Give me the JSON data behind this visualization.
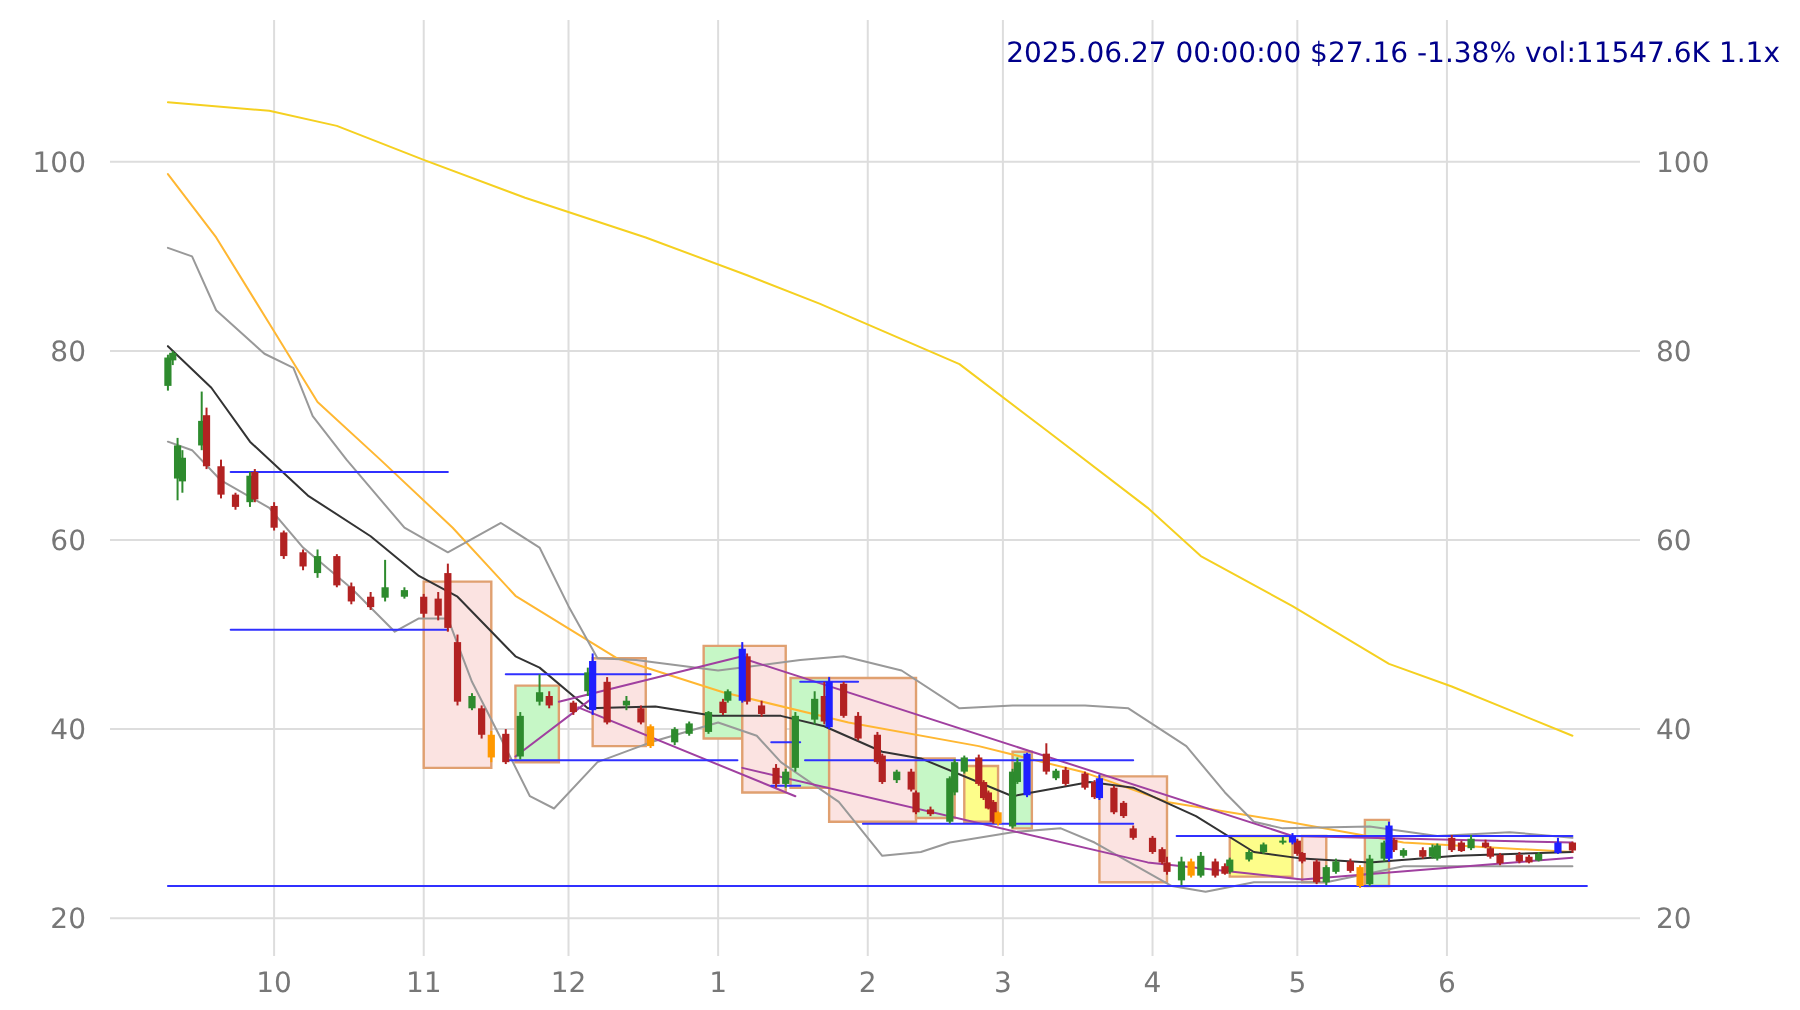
{
  "chart_data": {
    "type": "candlestick",
    "title": "2025.06.27 00:00:00 $27.16 -1.38% vol:11547.6K 1.1x",
    "xlim": [
      "2024-08-28",
      "2025-07-11"
    ],
    "ylim": [
      16,
      115
    ],
    "y2lim": [
      16,
      115
    ],
    "xticks": [
      {
        "value": "2024-10-01",
        "label": "10"
      },
      {
        "value": "2024-11-01",
        "label": "11"
      },
      {
        "value": "2024-12-01",
        "label": "12"
      },
      {
        "value": "2025-01-01",
        "label": "1"
      },
      {
        "value": "2025-02-01",
        "label": "2"
      },
      {
        "value": "2025-03-01",
        "label": "3"
      },
      {
        "value": "2025-04-01",
        "label": "4"
      },
      {
        "value": "2025-05-01",
        "label": "5"
      },
      {
        "value": "2025-06-01",
        "label": "6"
      }
    ],
    "yticks": [
      20,
      40,
      60,
      80,
      100
    ],
    "y2ticks": [
      20,
      40,
      60,
      80,
      100
    ],
    "grid": true,
    "series": [
      {
        "type": "area",
        "color": "#fbe3e1",
        "x": [
          "2024-11-01",
          "2024-11-01",
          "2024-11-15",
          "2024-11-15"
        ],
        "values": [
          35.9,
          55.6,
          55.6,
          35.9
        ]
      },
      {
        "type": "area",
        "color": "#c6f7c6",
        "x": [
          "2024-11-20",
          "2024-11-20",
          "2024-11-29",
          "2024-11-29"
        ],
        "values": [
          36.5,
          44.6,
          44.6,
          36.5
        ]
      },
      {
        "type": "area",
        "color": "#fbe3e1",
        "x": [
          "2024-12-06",
          "2024-12-06",
          "2024-12-17",
          "2024-12-17"
        ],
        "values": [
          38.2,
          47.5,
          47.5,
          38.2
        ]
      },
      {
        "type": "area",
        "color": "#c6f7c6",
        "x": [
          "2024-12-29",
          "2024-12-29",
          "2025-01-06",
          "2025-01-06"
        ],
        "values": [
          39,
          48.8,
          48.8,
          39
        ]
      },
      {
        "type": "area",
        "color": "#fbe3e1",
        "x": [
          "2025-01-06",
          "2025-01-06",
          "2025-01-15",
          "2025-01-15"
        ],
        "values": [
          33.3,
          48.8,
          48.8,
          33.3
        ]
      },
      {
        "type": "area",
        "color": "#c6f7c6",
        "x": [
          "2025-01-16",
          "2025-01-16",
          "2025-01-24",
          "2025-01-24"
        ],
        "values": [
          33.8,
          45.4,
          45.4,
          33.8
        ]
      },
      {
        "type": "area",
        "color": "#fbe3e1",
        "x": [
          "2025-01-24",
          "2025-01-24",
          "2025-02-11",
          "2025-02-11"
        ],
        "values": [
          30.2,
          45.4,
          45.4,
          30.2
        ]
      },
      {
        "type": "area",
        "color": "#c6f7c6",
        "x": [
          "2025-02-11",
          "2025-02-11",
          "2025-02-19",
          "2025-02-19"
        ],
        "values": [
          30.6,
          36.9,
          36.9,
          30.6
        ]
      },
      {
        "type": "area",
        "color": "#fdfd8a",
        "x": [
          "2025-02-21",
          "2025-02-21",
          "2025-02-28",
          "2025-02-28"
        ],
        "values": [
          30.2,
          36.1,
          36.1,
          30.2
        ]
      },
      {
        "type": "area",
        "color": "#c6f7c6",
        "x": [
          "2025-03-03",
          "2025-03-03",
          "2025-03-07",
          "2025-03-07"
        ],
        "values": [
          29.5,
          37.6,
          37.6,
          29.5
        ]
      },
      {
        "type": "area",
        "color": "#fbe3e1",
        "x": [
          "2025-03-21",
          "2025-03-21",
          "2025-04-04",
          "2025-04-04"
        ],
        "values": [
          23.8,
          35,
          35,
          23.8
        ]
      },
      {
        "type": "area",
        "color": "#fdfd8a",
        "x": [
          "2025-04-17",
          "2025-04-17",
          "2025-04-30",
          "2025-04-30"
        ],
        "values": [
          24.4,
          28.7,
          28.7,
          24.4
        ]
      },
      {
        "type": "area",
        "color": "#fbe3e1",
        "x": [
          "2025-05-02",
          "2025-05-02",
          "2025-05-07",
          "2025-05-07"
        ],
        "values": [
          23.8,
          28.7,
          28.7,
          23.8
        ]
      },
      {
        "type": "area",
        "color": "#c6f7c6",
        "x": [
          "2025-05-15",
          "2025-05-15",
          "2025-05-20",
          "2025-05-20"
        ],
        "values": [
          23.4,
          30.4,
          30.4,
          23.4
        ]
      },
      {
        "type": "line",
        "color": "#f5d020",
        "x": [
          "2024-09-09",
          "2024-09-30",
          "2024-10-14",
          "2024-11-01",
          "2024-11-22",
          "2024-12-17",
          "2025-01-07",
          "2025-01-22",
          "2025-02-20",
          "2025-03-10",
          "2025-03-31",
          "2025-04-11",
          "2025-04-30",
          "2025-05-20",
          "2025-06-02",
          "2025-06-27"
        ],
        "values": [
          106.3,
          105.4,
          103.8,
          100.2,
          96.2,
          92,
          88,
          85,
          78.6,
          71.6,
          63.4,
          58.3,
          53,
          46.9,
          44.5,
          39.3
        ]
      },
      {
        "type": "line",
        "color": "#ffb732",
        "x": [
          "2024-09-09",
          "2024-09-19",
          "2024-09-30",
          "2024-10-10",
          "2024-10-23",
          "2024-11-07",
          "2024-11-20",
          "2024-12-11",
          "2025-01-02",
          "2025-01-28",
          "2025-02-24",
          "2025-03-18",
          "2025-04-04",
          "2025-04-29",
          "2025-05-23",
          "2025-06-27"
        ],
        "values": [
          98.7,
          92,
          82.9,
          74.6,
          68.5,
          61.3,
          54.1,
          47.5,
          43.9,
          40.7,
          38.2,
          35.4,
          32.3,
          30.2,
          28,
          27
        ]
      },
      {
        "type": "line",
        "color": "#999999",
        "x": [
          "2024-09-09",
          "2024-09-14",
          "2024-09-19",
          "2024-09-29",
          "2024-10-05",
          "2024-10-09",
          "2024-10-16",
          "2024-10-28",
          "2024-11-06",
          "2024-11-17",
          "2024-11-25",
          "2024-12-01",
          "2024-12-07",
          "2024-12-15",
          "2025-01-01",
          "2025-01-18",
          "2025-01-27",
          "2025-02-08",
          "2025-02-20",
          "2025-03-03",
          "2025-03-18",
          "2025-03-27",
          "2025-04-08",
          "2025-04-16",
          "2025-04-22",
          "2025-04-28",
          "2025-05-16",
          "2025-05-30",
          "2025-06-14",
          "2025-06-27"
        ],
        "values": [
          90.9,
          90,
          84.3,
          79.7,
          78.2,
          73.1,
          68.5,
          61.3,
          58.7,
          61.8,
          59.2,
          53,
          47.5,
          47.3,
          46.2,
          47.3,
          47.7,
          46.2,
          42.2,
          42.5,
          42.5,
          42.2,
          38.2,
          33.3,
          30.2,
          29.5,
          29.7,
          28.7,
          29.1,
          28.5
        ]
      },
      {
        "type": "line",
        "color": "#999999",
        "x": [
          "2024-09-09",
          "2024-09-14",
          "2024-09-20",
          "2024-09-30",
          "2024-10-07",
          "2024-10-17",
          "2024-10-26",
          "2024-10-31",
          "2024-11-06",
          "2024-11-11",
          "2024-11-18",
          "2024-11-23",
          "2024-11-28",
          "2024-12-07",
          "2024-12-18",
          "2025-01-01",
          "2025-01-09",
          "2025-01-14",
          "2025-01-26",
          "2025-02-04",
          "2025-02-12",
          "2025-02-18",
          "2025-03-03",
          "2025-03-13",
          "2025-03-20",
          "2025-04-05",
          "2025-04-12",
          "2025-04-22",
          "2025-05-07",
          "2025-05-23",
          "2025-06-14",
          "2025-06-27"
        ],
        "values": [
          70.4,
          69.5,
          66.3,
          63.4,
          59.2,
          54.9,
          50.3,
          51.7,
          51.7,
          45,
          38,
          32.9,
          31.6,
          36.5,
          38.6,
          40.7,
          39.3,
          36.5,
          32.3,
          26.6,
          27,
          28,
          29.1,
          29.5,
          28,
          23.4,
          22.8,
          23.8,
          23.8,
          25.5,
          25.5,
          25.5
        ]
      },
      {
        "type": "line",
        "color": "#333333",
        "x": [
          "2024-09-09",
          "2024-09-18",
          "2024-09-26",
          "2024-10-08",
          "2024-10-21",
          "2024-10-31",
          "2024-11-08",
          "2024-11-20",
          "2024-11-25",
          "2024-12-05",
          "2024-12-19",
          "2024-12-31",
          "2025-01-14",
          "2025-01-23",
          "2025-02-04",
          "2025-02-12",
          "2025-03-03",
          "2025-03-07",
          "2025-03-19",
          "2025-03-28",
          "2025-04-10",
          "2025-04-22",
          "2025-05-02",
          "2025-05-16",
          "2025-06-03",
          "2025-06-27"
        ],
        "values": [
          80.5,
          76.1,
          70.4,
          64.7,
          60.4,
          56.2,
          54,
          47.7,
          46.5,
          42.2,
          42.4,
          41.4,
          41.4,
          40.3,
          37.6,
          36.9,
          32.9,
          33.3,
          34.4,
          33.8,
          30.8,
          27,
          26.3,
          25.9,
          26.6,
          27
        ]
      },
      {
        "type": "line",
        "color": "#a040a0",
        "x": [
          "2024-11-20",
          "2024-12-06"
        ],
        "values": [
          37.1,
          43.3
        ]
      },
      {
        "type": "line",
        "color": "#a040a0",
        "x": [
          "2024-11-29",
          "2025-01-06"
        ],
        "values": [
          42.9,
          47.7
        ]
      },
      {
        "type": "line",
        "color": "#a040a0",
        "x": [
          "2024-12-03",
          "2025-01-17"
        ],
        "values": [
          42.3,
          32.9
        ]
      },
      {
        "type": "line",
        "color": "#a040a0",
        "x": [
          "2025-01-06",
          "2025-03-31",
          "2025-05-02",
          "2025-06-27"
        ],
        "values": [
          35.9,
          25.9,
          24.1,
          26.4
        ]
      },
      {
        "type": "line",
        "color": "#a040a0",
        "x": [
          "2025-01-06",
          "2025-04-30",
          "2025-06-27"
        ],
        "values": [
          47.5,
          28.7,
          28
        ]
      },
      {
        "type": "line",
        "color": "#3030ff",
        "x": [
          "2024-09-22",
          "2024-11-06"
        ],
        "values": [
          67.2,
          67.2
        ]
      },
      {
        "type": "line",
        "color": "#3030ff",
        "x": [
          "2024-09-22",
          "2024-11-06"
        ],
        "values": [
          50.5,
          50.5
        ]
      },
      {
        "type": "line",
        "color": "#3030ff",
        "x": [
          "2024-11-18",
          "2024-12-18"
        ],
        "values": [
          45.8,
          45.8
        ]
      },
      {
        "type": "line",
        "color": "#3030ff",
        "x": [
          "2024-11-18",
          "2025-01-05"
        ],
        "values": [
          36.7,
          36.7
        ]
      },
      {
        "type": "line",
        "color": "#3030ff",
        "x": [
          "2025-01-18",
          "2025-01-30"
        ],
        "values": [
          45,
          45
        ]
      },
      {
        "type": "line",
        "color": "#3030ff",
        "x": [
          "2025-01-12",
          "2025-01-18"
        ],
        "values": [
          38.6,
          38.6
        ]
      },
      {
        "type": "line",
        "color": "#3030ff",
        "x": [
          "2025-01-12",
          "2025-01-18"
        ],
        "values": [
          34,
          34
        ]
      },
      {
        "type": "line",
        "color": "#3030ff",
        "x": [
          "2025-01-19",
          "2025-03-28"
        ],
        "values": [
          36.7,
          36.7
        ]
      },
      {
        "type": "line",
        "color": "#3030ff",
        "x": [
          "2025-01-31",
          "2025-03-28"
        ],
        "values": [
          30,
          30
        ]
      },
      {
        "type": "line",
        "color": "#3030ff",
        "x": [
          "2025-04-06",
          "2025-06-27"
        ],
        "values": [
          28.7,
          28.7
        ]
      },
      {
        "type": "line",
        "color": "#3030ff",
        "x": [
          "2024-09-09",
          "2025-06-30"
        ],
        "values": [
          23.4,
          23.4
        ]
      },
      {
        "color": "#2e8b2e",
        "x": [
          "2024-09-09",
          "2024-09-10",
          "2024-09-11",
          "2024-09-12",
          "2024-09-16",
          "2024-09-26",
          "2024-10-10",
          "2024-10-24",
          "2024-10-28",
          "2024-11-11",
          "2024-11-21",
          "2024-11-25",
          "2024-12-05",
          "2024-12-13",
          "2024-12-23",
          "2024-12-26",
          "2024-12-30",
          "2025-01-03",
          "2025-01-15",
          "2025-01-17",
          "2025-01-21",
          "2025-02-07",
          "2025-02-18",
          "2025-02-19",
          "2025-02-21",
          "2025-03-03",
          "2025-03-04",
          "2025-03-12",
          "2025-04-07",
          "2025-04-11",
          "2025-04-17",
          "2025-04-21",
          "2025-04-24",
          "2025-04-28",
          "2025-05-07",
          "2025-05-09",
          "2025-05-16",
          "2025-05-19",
          "2025-05-23",
          "2025-05-29",
          "2025-05-30",
          "2025-06-06",
          "2025-06-20"
        ],
        "ohlc": [
          [
            76.3,
            79.6,
            75.8,
            79.3
          ],
          [
            79,
            80,
            78.5,
            79.8
          ],
          [
            66.5,
            70.8,
            64.2,
            70
          ],
          [
            66.2,
            69.5,
            65,
            68.7
          ],
          [
            70,
            75.7,
            69.5,
            72.6
          ],
          [
            64,
            67.2,
            63.5,
            66.8
          ],
          [
            56.5,
            59,
            56,
            58.3
          ],
          [
            53.9,
            57.9,
            53.5,
            55
          ],
          [
            54,
            55,
            53.8,
            54.7
          ],
          [
            42.2,
            43.8,
            42,
            43.5
          ],
          [
            37.1,
            41.8,
            36.8,
            41.4
          ],
          [
            42.9,
            45.8,
            42.5,
            43.9
          ],
          [
            44,
            46.5,
            43.5,
            46
          ],
          [
            42.5,
            43.5,
            42,
            43
          ],
          [
            38.6,
            40.2,
            38.3,
            40
          ],
          [
            39.5,
            40.8,
            39.3,
            40.6
          ],
          [
            39.7,
            41.9,
            39.5,
            41.8
          ],
          [
            43,
            44.2,
            42.8,
            44
          ],
          [
            34.2,
            35.8,
            33.8,
            35.5
          ],
          [
            35.9,
            41.8,
            35.5,
            41.4
          ],
          [
            41,
            44,
            40.5,
            43.2
          ],
          [
            34.6,
            35.7,
            34.3,
            35.5
          ],
          [
            30.2,
            35,
            30,
            34.8
          ],
          [
            33.3,
            36.8,
            33,
            36.5
          ],
          [
            35.5,
            37.2,
            35.3,
            37
          ],
          [
            29.7,
            35.8,
            29.5,
            35.5
          ],
          [
            34.4,
            37,
            34.2,
            36.5
          ],
          [
            34.8,
            35.8,
            34.6,
            35.6
          ],
          [
            24,
            26.5,
            23.5,
            26
          ],
          [
            24.5,
            27,
            24.3,
            26.6
          ],
          [
            24.9,
            26.4,
            24.7,
            26.2
          ],
          [
            26.2,
            27.2,
            26,
            27
          ],
          [
            27,
            28,
            26.8,
            27.8
          ],
          [
            28,
            28.6,
            27.8,
            28.2
          ],
          [
            23.8,
            25.6,
            23.5,
            25.4
          ],
          [
            24.9,
            26.3,
            24.7,
            26
          ],
          [
            23.6,
            26.7,
            23.4,
            26.3
          ],
          [
            26.3,
            28.2,
            26,
            28
          ],
          [
            26.6,
            27.4,
            26.4,
            27.2
          ],
          [
            26.5,
            27.8,
            26.3,
            27.5
          ],
          [
            26.3,
            27.9,
            26.1,
            27.7
          ],
          [
            27.4,
            28.8,
            27.2,
            28.4
          ],
          [
            26.1,
            27,
            26,
            26.8
          ]
        ]
      },
      {
        "color": "#b22222",
        "x": [
          "2024-09-17",
          "2024-09-20",
          "2024-09-23",
          "2024-09-27",
          "2024-10-01",
          "2024-10-03",
          "2024-10-07",
          "2024-10-14",
          "2024-10-17",
          "2024-10-21",
          "2024-11-01",
          "2024-11-04",
          "2024-11-06",
          "2024-11-08",
          "2024-11-13",
          "2024-11-18",
          "2024-11-27",
          "2024-12-02",
          "2024-12-09",
          "2024-12-16",
          "2025-01-02",
          "2025-01-07",
          "2025-01-10",
          "2025-01-13",
          "2025-01-23",
          "2025-01-27",
          "2025-01-30",
          "2025-02-03",
          "2025-02-04",
          "2025-02-10",
          "2025-02-11",
          "2025-02-14",
          "2025-02-24",
          "2025-02-25",
          "2025-02-26",
          "2025-02-27",
          "2025-03-10",
          "2025-03-14",
          "2025-03-18",
          "2025-03-20",
          "2025-03-24",
          "2025-03-26",
          "2025-03-28",
          "2025-04-01",
          "2025-04-03",
          "2025-04-04",
          "2025-04-14",
          "2025-04-16",
          "2025-05-01",
          "2025-05-02",
          "2025-05-05",
          "2025-05-12",
          "2025-05-21",
          "2025-05-27",
          "2025-06-02",
          "2025-06-04",
          "2025-06-09",
          "2025-06-10",
          "2025-06-12",
          "2025-06-16",
          "2025-06-18",
          "2025-06-27"
        ],
        "ohlc": [
          [
            73.2,
            74,
            67.5,
            67.8
          ],
          [
            67.8,
            68.5,
            64.4,
            64.8
          ],
          [
            64.8,
            65,
            63.2,
            63.5
          ],
          [
            67.2,
            67.5,
            64,
            64.3
          ],
          [
            63.6,
            64,
            61,
            61.3
          ],
          [
            60.8,
            61,
            58,
            58.3
          ],
          [
            58.7,
            59,
            56.8,
            57.2
          ],
          [
            58.3,
            58.5,
            55,
            55.2
          ],
          [
            55.1,
            55.5,
            53.2,
            53.5
          ],
          [
            54,
            54.5,
            52.6,
            52.9
          ],
          [
            54,
            54.3,
            51.8,
            52.2
          ],
          [
            53.8,
            54.5,
            51.5,
            52
          ],
          [
            56.5,
            57.5,
            50.3,
            50.7
          ],
          [
            49.2,
            50,
            42.5,
            42.9
          ],
          [
            42.2,
            42.5,
            39,
            39.4
          ],
          [
            39.5,
            40,
            36.3,
            36.5
          ],
          [
            43.5,
            44,
            42.2,
            42.5
          ],
          [
            42.8,
            43,
            41.5,
            41.8
          ],
          [
            45,
            45.5,
            40.5,
            40.7
          ],
          [
            42.2,
            42.5,
            40.5,
            40.7
          ],
          [
            42.9,
            43.2,
            41.5,
            41.7
          ],
          [
            47.7,
            48,
            42.6,
            42.9
          ],
          [
            42.5,
            43,
            41.3,
            41.6
          ],
          [
            35.9,
            36.3,
            33.8,
            34.2
          ],
          [
            43.5,
            45,
            40.5,
            40.8
          ],
          [
            44.8,
            45,
            41.2,
            41.4
          ],
          [
            41.4,
            41.8,
            38.8,
            39
          ],
          [
            39.4,
            39.7,
            36.3,
            36.5
          ],
          [
            37.2,
            37.4,
            34.2,
            34.4
          ],
          [
            35.5,
            35.8,
            33.4,
            33.6
          ],
          [
            33.3,
            33.5,
            31,
            31.2
          ],
          [
            31.5,
            31.8,
            30.8,
            31
          ],
          [
            37,
            37.3,
            34,
            34.2
          ],
          [
            34.4,
            34.6,
            32.5,
            32.7
          ],
          [
            33.3,
            33.5,
            31.5,
            31.6
          ],
          [
            32.3,
            32.5,
            30,
            30.2
          ],
          [
            37.4,
            38.5,
            35.2,
            35.5
          ],
          [
            35.7,
            36,
            34,
            34.2
          ],
          [
            35.3,
            35.5,
            33.6,
            33.8
          ],
          [
            34.4,
            34.6,
            32.6,
            32.8
          ],
          [
            33.8,
            34,
            31,
            31.2
          ],
          [
            32.2,
            32.4,
            30.6,
            30.8
          ],
          [
            29.5,
            29.8,
            28.3,
            28.5
          ],
          [
            28.5,
            28.7,
            26.8,
            27
          ],
          [
            27.3,
            27.5,
            25.7,
            25.9
          ],
          [
            25.9,
            26.5,
            24.6,
            24.9
          ],
          [
            26,
            26.3,
            24.3,
            24.5
          ],
          [
            25.5,
            25.8,
            24.6,
            24.7
          ],
          [
            28.2,
            28.4,
            26.6,
            26.8
          ],
          [
            26.9,
            27,
            25.8,
            26
          ],
          [
            26,
            26.2,
            23.6,
            23.8
          ],
          [
            26,
            26.3,
            24.8,
            25
          ],
          [
            28.3,
            28.5,
            27,
            27.2
          ],
          [
            27.2,
            27.5,
            26.3,
            26.5
          ],
          [
            28.5,
            28.8,
            27,
            27.2
          ],
          [
            28,
            28.2,
            27,
            27.1
          ],
          [
            28,
            28.3,
            27.4,
            27.5
          ],
          [
            27.4,
            27.6,
            26.3,
            26.5
          ],
          [
            26.7,
            26.9,
            25.6,
            25.8
          ],
          [
            26.7,
            27,
            25.8,
            26
          ],
          [
            26.5,
            26.7,
            25.8,
            25.9
          ],
          [
            28,
            28.1,
            26.9,
            27.16
          ]
        ]
      },
      {
        "color": "#ff9900",
        "x": [
          "2024-11-15",
          "2024-12-18",
          "2025-02-28",
          "2025-04-09",
          "2025-05-14"
        ],
        "ohlc": [
          [
            39.4,
            39.8,
            36.5,
            37
          ],
          [
            40.3,
            40.5,
            38,
            38.2
          ],
          [
            31.2,
            31.3,
            29.8,
            30
          ],
          [
            26,
            26.3,
            24.3,
            24.5
          ],
          [
            25.4,
            25.6,
            23.2,
            23.4
          ]
        ]
      },
      {
        "color": "#1f1fff",
        "x": [
          "2024-12-06",
          "2025-01-06",
          "2025-01-24",
          "2025-03-06",
          "2025-03-21",
          "2025-04-30",
          "2025-05-20",
          "2025-06-24"
        ],
        "ohlc": [
          [
            42,
            48,
            41.5,
            47.2
          ],
          [
            43,
            49.2,
            42.8,
            48.5
          ],
          [
            40.2,
            45.5,
            40,
            45
          ],
          [
            33,
            37.5,
            32.8,
            37.4
          ],
          [
            32.7,
            35.2,
            32.5,
            34.8
          ],
          [
            28,
            29,
            27.8,
            28.7
          ],
          [
            26.3,
            30.2,
            26,
            29.8
          ],
          [
            26.9,
            28.5,
            26.8,
            28
          ]
        ]
      }
    ]
  }
}
